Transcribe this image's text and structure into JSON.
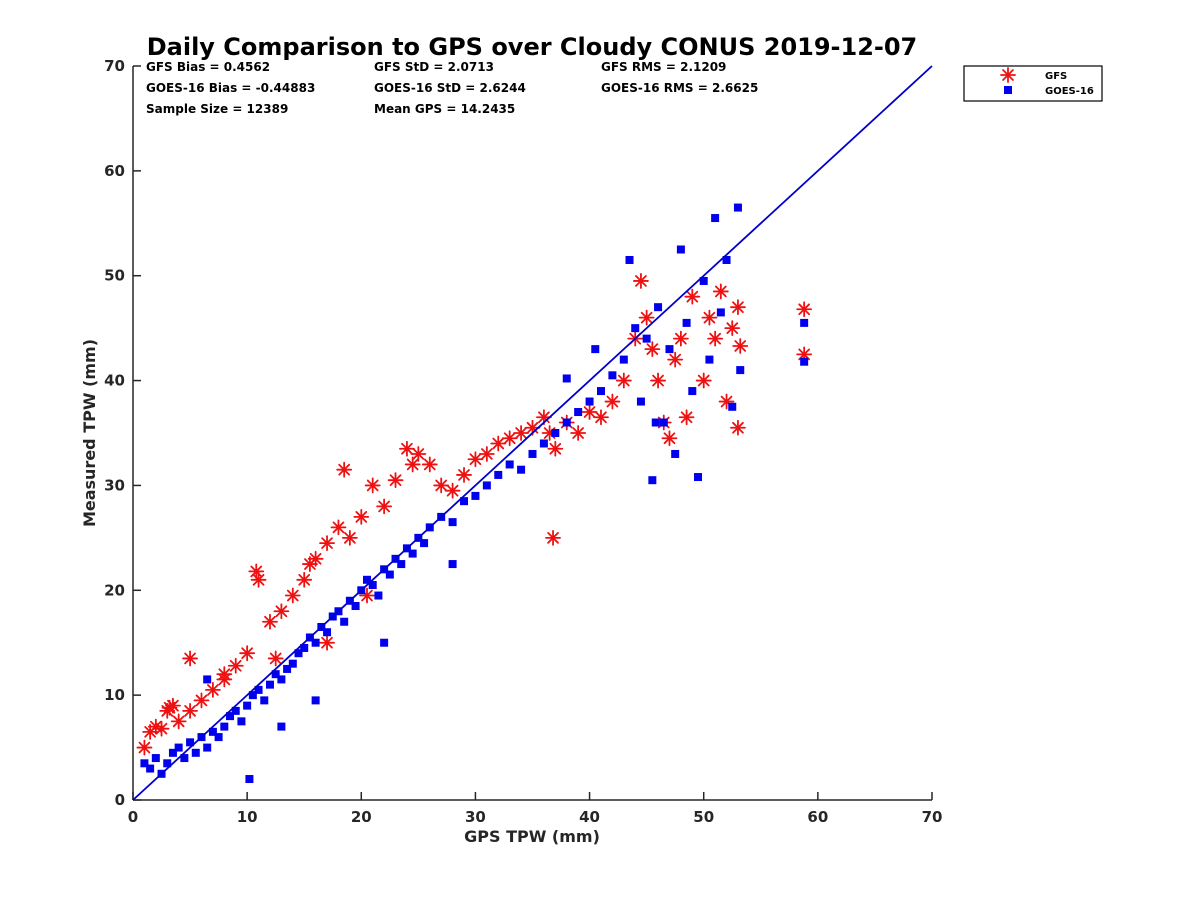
{
  "chart_data": {
    "type": "scatter",
    "title": "Daily Comparison to GPS over Cloudy CONUS 2019-12-07",
    "xlabel": "GPS TPW (mm)",
    "ylabel": "Measured TPW (mm)",
    "xlim": [
      0,
      70
    ],
    "ylim": [
      0,
      70
    ],
    "xticks": [
      "0",
      "10",
      "20",
      "30",
      "40",
      "50",
      "60",
      "70"
    ],
    "yticks": [
      "0",
      "10",
      "20",
      "30",
      "40",
      "50",
      "60",
      "70"
    ],
    "grid": false,
    "legend_position": "outside-top-right",
    "stats": [
      "GFS Bias = 0.4562",
      "GFS StD = 2.0713",
      "GFS RMS = 2.1209",
      "GOES-16 Bias = -0.44883",
      "GOES-16 StD = 2.6244",
      "GOES-16 RMS = 2.6625",
      "Sample Size = 12389",
      "Mean GPS = 14.2435"
    ],
    "reference_line": {
      "x": [
        0,
        70
      ],
      "y": [
        0,
        70
      ],
      "color": "#0000cc"
    },
    "series": [
      {
        "name": "GFS",
        "marker": "asterisk",
        "color": "#ee1111",
        "x": [
          1.0,
          1.5,
          2.0,
          2.5,
          3.0,
          3.5,
          4.0,
          5.0,
          6.0,
          7.0,
          8.0,
          9.0,
          10.0,
          10.8,
          11.0,
          12.0,
          13.0,
          14.0,
          15.0,
          15.5,
          16.0,
          17.0,
          18.0,
          18.5,
          19.0,
          20.0,
          21.0,
          22.0,
          23.0,
          24.0,
          24.5,
          25.0,
          26.0,
          27.0,
          28.0,
          29.0,
          30.0,
          31.0,
          32.0,
          33.0,
          34.0,
          35.0,
          36.0,
          36.5,
          37.0,
          38.0,
          39.0,
          40.0,
          41.0,
          42.0,
          43.0,
          44.0,
          44.5,
          45.0,
          45.5,
          46.0,
          46.5,
          47.0,
          47.5,
          48.0,
          48.5,
          49.0,
          50.0,
          50.5,
          51.0,
          51.5,
          52.0,
          52.5,
          53.0,
          53.2,
          53.0,
          58.8,
          58.8,
          5.0,
          3.2,
          12.5,
          8.0,
          20.5,
          17.0,
          36.8
        ],
        "y": [
          5.0,
          6.5,
          7.0,
          6.8,
          8.5,
          9.0,
          7.5,
          8.5,
          9.5,
          10.5,
          12.0,
          12.8,
          14.0,
          21.8,
          21.0,
          17.0,
          18.0,
          19.5,
          21.0,
          22.5,
          23.0,
          24.5,
          26.0,
          31.5,
          25.0,
          27.0,
          30.0,
          28.0,
          30.5,
          33.5,
          32.0,
          33.0,
          32.0,
          30.0,
          29.5,
          31.0,
          32.5,
          33.0,
          34.0,
          34.5,
          35.0,
          35.5,
          36.5,
          35.0,
          33.5,
          36.0,
          35.0,
          37.0,
          36.5,
          38.0,
          40.0,
          44.0,
          49.5,
          46.0,
          43.0,
          40.0,
          36.0,
          34.5,
          42.0,
          44.0,
          36.5,
          48.0,
          40.0,
          46.0,
          44.0,
          48.5,
          38.0,
          45.0,
          47.0,
          43.3,
          35.5,
          46.8,
          42.5,
          13.5,
          8.8,
          13.5,
          11.5,
          19.5,
          15.0,
          25.0
        ]
      },
      {
        "name": "GOES-16",
        "marker": "square",
        "color": "#0000ee",
        "x": [
          1.0,
          1.5,
          2.0,
          2.5,
          3.0,
          3.5,
          4.0,
          4.5,
          5.0,
          5.5,
          6.0,
          6.5,
          7.0,
          7.5,
          8.0,
          8.5,
          9.0,
          9.5,
          10.0,
          10.5,
          11.0,
          11.5,
          12.0,
          12.5,
          13.0,
          13.5,
          14.0,
          14.5,
          15.0,
          15.5,
          16.0,
          16.5,
          17.0,
          17.5,
          18.0,
          18.5,
          19.0,
          19.5,
          20.0,
          20.5,
          21.0,
          21.5,
          22.0,
          22.5,
          23.0,
          23.5,
          24.0,
          24.5,
          25.0,
          25.5,
          26.0,
          27.0,
          28.0,
          29.0,
          30.0,
          31.0,
          32.0,
          33.0,
          34.0,
          35.0,
          36.0,
          37.0,
          38.0,
          39.0,
          40.0,
          41.0,
          42.0,
          43.0,
          43.5,
          44.0,
          44.5,
          45.0,
          45.5,
          46.0,
          46.5,
          47.0,
          47.5,
          48.0,
          48.5,
          49.0,
          49.5,
          50.0,
          50.5,
          51.0,
          51.5,
          52.0,
          52.5,
          53.0,
          53.2,
          58.8,
          58.8,
          38.0,
          40.5,
          45.8,
          10.2,
          6.5,
          13.0,
          22.0,
          16.0,
          28.0
        ],
        "y": [
          3.5,
          3.0,
          4.0,
          2.5,
          3.5,
          4.5,
          5.0,
          4.0,
          5.5,
          4.5,
          6.0,
          5.0,
          6.5,
          6.0,
          7.0,
          8.0,
          8.5,
          7.5,
          9.0,
          10.0,
          10.5,
          9.5,
          11.0,
          12.0,
          11.5,
          12.5,
          13.0,
          14.0,
          14.5,
          15.5,
          15.0,
          16.5,
          16.0,
          17.5,
          18.0,
          17.0,
          19.0,
          18.5,
          20.0,
          21.0,
          20.5,
          19.5,
          22.0,
          21.5,
          23.0,
          22.5,
          24.0,
          23.5,
          25.0,
          24.5,
          26.0,
          27.0,
          26.5,
          28.5,
          29.0,
          30.0,
          31.0,
          32.0,
          31.5,
          33.0,
          34.0,
          35.0,
          36.0,
          37.0,
          38.0,
          39.0,
          40.5,
          42.0,
          51.5,
          45.0,
          38.0,
          44.0,
          30.5,
          47.0,
          36.0,
          43.0,
          33.0,
          52.5,
          45.5,
          39.0,
          30.8,
          49.5,
          42.0,
          55.5,
          46.5,
          51.5,
          37.5,
          56.5,
          41.0,
          45.5,
          41.8,
          40.2,
          43.0,
          36.0,
          2.0,
          11.5,
          7.0,
          15.0,
          9.5,
          22.5
        ]
      }
    ]
  }
}
